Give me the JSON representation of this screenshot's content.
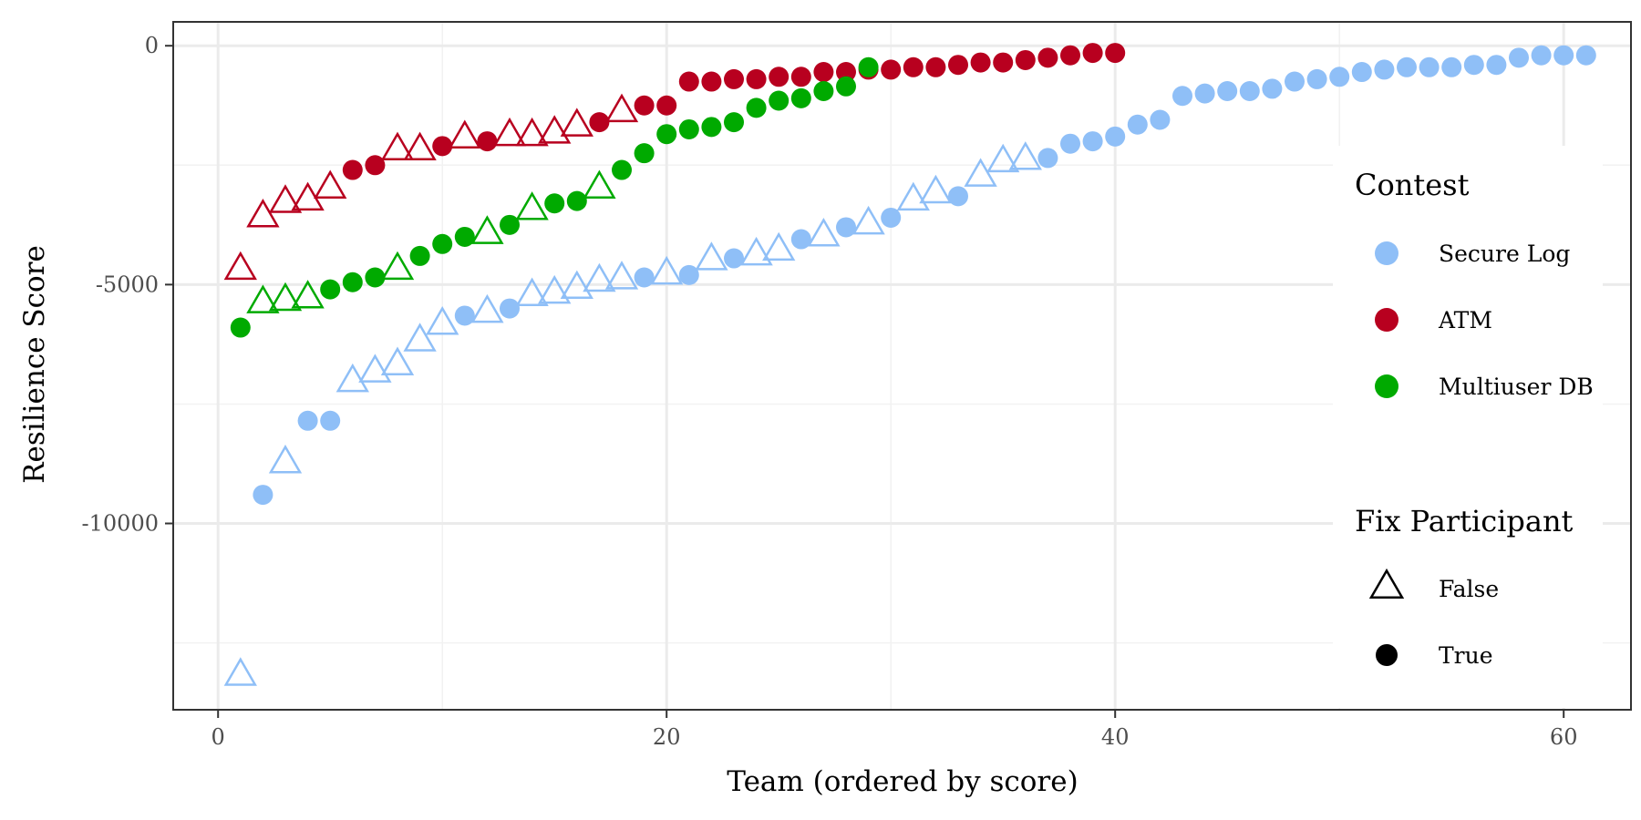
{
  "chart_data": {
    "type": "scatter",
    "xlabel": "Team (ordered by score)",
    "ylabel": "Resilience Score",
    "xlim": [
      -2,
      63
    ],
    "ylim": [
      -13900,
      500
    ],
    "x_ticks": [
      0,
      20,
      40,
      60
    ],
    "y_ticks": [
      0,
      -5000,
      -10000
    ],
    "x_tick_labels": [
      "0",
      "20",
      "40",
      "60"
    ],
    "y_tick_labels": [
      "0",
      "-5000",
      "-10000"
    ],
    "grid": true,
    "legend": {
      "placement": "right",
      "contest_title": "Contest",
      "fix_title": "Fix Participant",
      "fix_items": [
        {
          "label": "False",
          "shape": "triangle"
        },
        {
          "label": "True",
          "shape": "circle"
        }
      ]
    },
    "series": [
      {
        "name": "Secure Log",
        "color": "#8fbff7",
        "points": [
          [
            1,
            -13200,
            false
          ],
          [
            2,
            -9400,
            true
          ],
          [
            3,
            -8750,
            false
          ],
          [
            4,
            -7850,
            true
          ],
          [
            5,
            -7850,
            true
          ],
          [
            6,
            -7050,
            false
          ],
          [
            7,
            -6850,
            false
          ],
          [
            8,
            -6700,
            false
          ],
          [
            9,
            -6200,
            false
          ],
          [
            10,
            -5850,
            false
          ],
          [
            11,
            -5650,
            true
          ],
          [
            12,
            -5600,
            false
          ],
          [
            13,
            -5500,
            true
          ],
          [
            14,
            -5250,
            false
          ],
          [
            15,
            -5200,
            false
          ],
          [
            16,
            -5100,
            false
          ],
          [
            17,
            -4950,
            false
          ],
          [
            18,
            -4900,
            false
          ],
          [
            19,
            -4850,
            true
          ],
          [
            20,
            -4800,
            false
          ],
          [
            21,
            -4800,
            true
          ],
          [
            22,
            -4500,
            false
          ],
          [
            23,
            -4450,
            true
          ],
          [
            24,
            -4400,
            false
          ],
          [
            25,
            -4300,
            false
          ],
          [
            26,
            -4050,
            true
          ],
          [
            27,
            -4000,
            false
          ],
          [
            28,
            -3800,
            true
          ],
          [
            29,
            -3750,
            false
          ],
          [
            30,
            -3600,
            true
          ],
          [
            31,
            -3250,
            false
          ],
          [
            32,
            -3100,
            false
          ],
          [
            33,
            -3150,
            true
          ],
          [
            34,
            -2750,
            false
          ],
          [
            35,
            -2450,
            false
          ],
          [
            36,
            -2400,
            false
          ],
          [
            37,
            -2350,
            true
          ],
          [
            38,
            -2050,
            true
          ],
          [
            39,
            -2000,
            true
          ],
          [
            40,
            -1900,
            true
          ],
          [
            41,
            -1650,
            true
          ],
          [
            42,
            -1550,
            true
          ],
          [
            43,
            -1050,
            true
          ],
          [
            44,
            -1000,
            true
          ],
          [
            45,
            -950,
            true
          ],
          [
            46,
            -950,
            true
          ],
          [
            47,
            -900,
            true
          ],
          [
            48,
            -750,
            true
          ],
          [
            49,
            -700,
            true
          ],
          [
            50,
            -650,
            true
          ],
          [
            51,
            -550,
            true
          ],
          [
            52,
            -500,
            true
          ],
          [
            53,
            -450,
            true
          ],
          [
            54,
            -450,
            true
          ],
          [
            55,
            -450,
            true
          ],
          [
            56,
            -400,
            true
          ],
          [
            57,
            -400,
            true
          ],
          [
            58,
            -250,
            true
          ],
          [
            59,
            -200,
            true
          ],
          [
            60,
            -200,
            true
          ],
          [
            61,
            -200,
            true
          ]
        ]
      },
      {
        "name": "ATM",
        "color": "#b8001f",
        "points": [
          [
            1,
            -4700,
            false
          ],
          [
            2,
            -3600,
            false
          ],
          [
            3,
            -3300,
            false
          ],
          [
            4,
            -3250,
            false
          ],
          [
            5,
            -3000,
            false
          ],
          [
            6,
            -2600,
            true
          ],
          [
            7,
            -2500,
            true
          ],
          [
            8,
            -2200,
            false
          ],
          [
            9,
            -2200,
            false
          ],
          [
            10,
            -2100,
            true
          ],
          [
            11,
            -1950,
            false
          ],
          [
            12,
            -2000,
            true
          ],
          [
            13,
            -1900,
            false
          ],
          [
            14,
            -1900,
            false
          ],
          [
            15,
            -1850,
            false
          ],
          [
            16,
            -1700,
            false
          ],
          [
            17,
            -1600,
            true
          ],
          [
            18,
            -1400,
            false
          ],
          [
            19,
            -1250,
            true
          ],
          [
            20,
            -1250,
            true
          ],
          [
            21,
            -750,
            true
          ],
          [
            22,
            -750,
            true
          ],
          [
            23,
            -700,
            true
          ],
          [
            24,
            -700,
            true
          ],
          [
            25,
            -650,
            true
          ],
          [
            26,
            -650,
            true
          ],
          [
            27,
            -550,
            true
          ],
          [
            28,
            -550,
            true
          ],
          [
            29,
            -500,
            true
          ],
          [
            30,
            -500,
            true
          ],
          [
            31,
            -450,
            true
          ],
          [
            32,
            -450,
            true
          ],
          [
            33,
            -400,
            true
          ],
          [
            34,
            -350,
            true
          ],
          [
            35,
            -350,
            true
          ],
          [
            36,
            -300,
            true
          ],
          [
            37,
            -250,
            true
          ],
          [
            38,
            -200,
            true
          ],
          [
            39,
            -150,
            true
          ],
          [
            40,
            -150,
            true
          ]
        ]
      },
      {
        "name": "Multiuser DB",
        "color": "#00aa00",
        "points": [
          [
            1,
            -5900,
            true
          ],
          [
            2,
            -5400,
            false
          ],
          [
            3,
            -5350,
            false
          ],
          [
            4,
            -5300,
            false
          ],
          [
            5,
            -5100,
            true
          ],
          [
            6,
            -4950,
            true
          ],
          [
            7,
            -4850,
            true
          ],
          [
            8,
            -4700,
            false
          ],
          [
            9,
            -4400,
            true
          ],
          [
            10,
            -4150,
            true
          ],
          [
            11,
            -4000,
            true
          ],
          [
            12,
            -3950,
            false
          ],
          [
            13,
            -3750,
            true
          ],
          [
            14,
            -3450,
            false
          ],
          [
            15,
            -3300,
            true
          ],
          [
            16,
            -3250,
            true
          ],
          [
            17,
            -3000,
            false
          ],
          [
            18,
            -2600,
            true
          ],
          [
            19,
            -2250,
            true
          ],
          [
            20,
            -1850,
            true
          ],
          [
            21,
            -1750,
            true
          ],
          [
            22,
            -1700,
            true
          ],
          [
            23,
            -1600,
            true
          ],
          [
            24,
            -1300,
            true
          ],
          [
            25,
            -1150,
            true
          ],
          [
            26,
            -1100,
            true
          ],
          [
            27,
            -950,
            true
          ],
          [
            28,
            -850,
            true
          ],
          [
            29,
            -450,
            true
          ]
        ]
      }
    ]
  }
}
